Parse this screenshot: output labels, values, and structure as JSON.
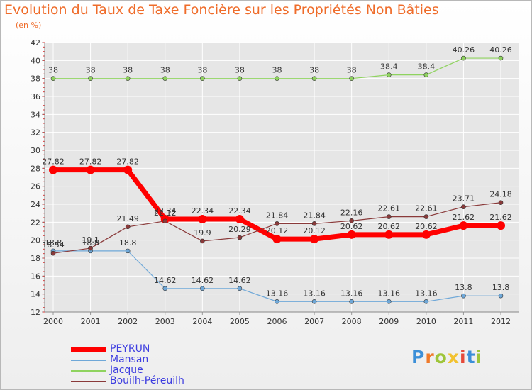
{
  "colors": {
    "title": "#ef6c2a",
    "axis": "#9a9a9a",
    "grid": "#ffffff",
    "label": "#333333",
    "legend_text": "#3d3de0"
  },
  "chart_data": {
    "type": "line",
    "title": "Evolution du Taux de Taxe Foncière sur les Propriétés Non Bâties",
    "ylabel": "(en %)",
    "xlabel": "",
    "ylim": [
      12,
      42
    ],
    "y_ticks": [
      "12",
      "14",
      "16",
      "18",
      "20",
      "22",
      "24",
      "26",
      "28",
      "30",
      "32",
      "34",
      "36",
      "38",
      "40",
      "42"
    ],
    "categories": [
      "2000",
      "2001",
      "2002",
      "2003",
      "2004",
      "2005",
      "2006",
      "2007",
      "2008",
      "2009",
      "2010",
      "2011",
      "2012"
    ],
    "series": [
      {
        "name": "PEYRUN",
        "color": "#ff0000",
        "values": [
          27.82,
          27.82,
          27.82,
          22.34,
          22.34,
          22.34,
          20.12,
          20.12,
          20.62,
          20.62,
          20.62,
          21.62,
          21.62
        ],
        "labels": [
          "27.82",
          "27.82",
          "27.82",
          "22.34",
          "22.34",
          "22.34",
          "20.12",
          "20.12",
          "20.62",
          "20.62",
          "20.62",
          "21.62",
          "21.62"
        ]
      },
      {
        "name": "Mansan",
        "color": "#6fa8d8",
        "values": [
          18.8,
          18.8,
          18.8,
          14.62,
          14.62,
          14.62,
          13.16,
          13.16,
          13.16,
          13.16,
          13.16,
          13.8,
          13.8
        ],
        "labels": [
          "18.8",
          "18.8",
          "18.8",
          "14.62",
          "14.62",
          "14.62",
          "13.16",
          "13.16",
          "13.16",
          "13.16",
          "13.16",
          "13.8",
          "13.8"
        ]
      },
      {
        "name": "Jacque",
        "color": "#8fd35f",
        "values": [
          38,
          38,
          38,
          38,
          38,
          38,
          38,
          38,
          38,
          38.4,
          38.4,
          40.26,
          40.26
        ],
        "labels": [
          "38",
          "38",
          "38",
          "38",
          "38",
          "38",
          "38",
          "38",
          "38",
          "38.4",
          "38.4",
          "40.26",
          "40.26"
        ]
      },
      {
        "name": "Bouilh-Péreuilh",
        "color": "#8a3a3a",
        "values": [
          18.54,
          19.1,
          21.49,
          22.12,
          19.9,
          20.29,
          21.84,
          21.84,
          22.16,
          22.61,
          22.61,
          23.71,
          24.18
        ],
        "labels": [
          "18.54",
          "19.1",
          "21.49",
          "22.12",
          "19.9",
          "20.29",
          "21.84",
          "21.84",
          "22.16",
          "22.61",
          "22.61",
          "23.71",
          "24.18"
        ]
      }
    ],
    "legend": [
      "PEYRUN",
      "Mansan",
      "Jacque",
      "Bouilh-Péreuilh"
    ]
  },
  "logo": {
    "letters": [
      "P",
      "r",
      "o",
      "x",
      "i",
      "t",
      "i"
    ],
    "colors": [
      "#3b8fd8",
      "#ef7a2a",
      "#9ec53a",
      "#f2c230",
      "#e64a3a",
      "#3b8fd8",
      "#9ec53a"
    ]
  }
}
